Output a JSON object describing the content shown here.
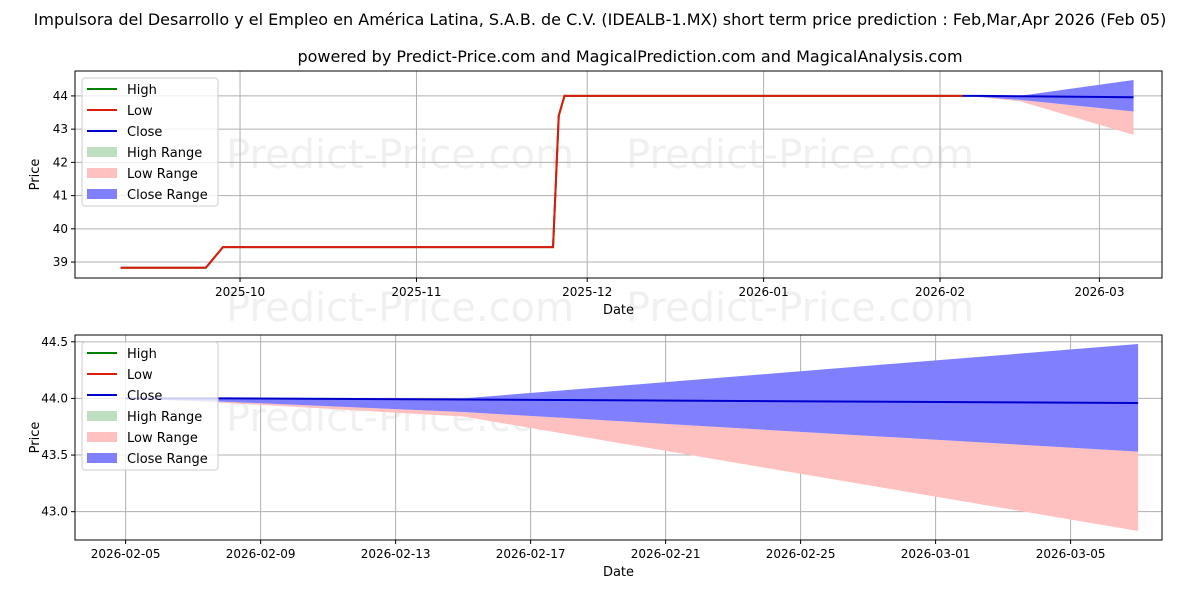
{
  "title": "Impulsora del Desarrollo y el Empleo en América Latina, S.A.B. de C.V. (IDEALB-1.MX) short term price prediction : Feb,Mar,Apr 2026 (Feb 05)",
  "subtitle": "powered by Predict-Price.com and MagicalPrediction.com and MagicalAnalysis.com",
  "watermark": "Predict-Price.com",
  "colors": {
    "high": "#008000",
    "low": "#dd1a10",
    "close": "#0000cc",
    "high_range": "#bfe0bf",
    "low_range": "#ffc0c0",
    "close_range": "#8080ff"
  },
  "legend": [
    "High",
    "Low",
    "Close",
    "High Range",
    "Low Range",
    "Close Range"
  ],
  "chart_data": [
    {
      "type": "line",
      "xlabel": "Date",
      "ylabel": "Price",
      "xlim": [
        "2025-09-02",
        "2026-03-12"
      ],
      "ylim": [
        38.52,
        44.75
      ],
      "grid": true,
      "legend_position": "top-left",
      "xticks": [
        {
          "date": "2025-10-01",
          "label": "2025-10"
        },
        {
          "date": "2025-11-01",
          "label": "2025-11"
        },
        {
          "date": "2025-12-01",
          "label": "2025-12"
        },
        {
          "date": "2026-01-01",
          "label": "2026-01"
        },
        {
          "date": "2026-02-01",
          "label": "2026-02"
        },
        {
          "date": "2026-03-01",
          "label": "2026-03"
        }
      ],
      "yticks": [
        39,
        40,
        41,
        42,
        43,
        44
      ],
      "history": {
        "dates": [
          "2025-09-10",
          "2025-09-25",
          "2025-09-28",
          "2025-11-25",
          "2025-11-26",
          "2025-11-27",
          "2026-02-05"
        ],
        "high": [
          38.83,
          38.83,
          39.45,
          39.45,
          43.4,
          44.0,
          44.0
        ],
        "low": [
          38.83,
          38.83,
          39.45,
          39.45,
          43.4,
          44.0,
          44.0
        ]
      }
    },
    {
      "type": "line",
      "xlabel": "Date",
      "ylabel": "Price",
      "xlim": [
        "2026-02-03T12:00",
        "2026-03-07T17:00"
      ],
      "ylim": [
        42.75,
        44.56
      ],
      "grid": true,
      "legend_position": "top-left",
      "xticks": [
        {
          "date": "2026-02-05",
          "label": "2026-02-05"
        },
        {
          "date": "2026-02-09",
          "label": "2026-02-09"
        },
        {
          "date": "2026-02-13",
          "label": "2026-02-13"
        },
        {
          "date": "2026-02-17",
          "label": "2026-02-17"
        },
        {
          "date": "2026-02-21",
          "label": "2026-02-21"
        },
        {
          "date": "2026-02-25",
          "label": "2026-02-25"
        },
        {
          "date": "2026-03-01",
          "label": "2026-03-01"
        },
        {
          "date": "2026-03-05",
          "label": "2026-03-05"
        }
      ],
      "yticks": [
        {
          "v": 43.0,
          "label": "43.0"
        },
        {
          "v": 43.5,
          "label": "43.5"
        },
        {
          "v": 44.0,
          "label": "44.0"
        },
        {
          "v": 44.5,
          "label": "44.5"
        }
      ]
    }
  ],
  "forecast": {
    "dates": [
      "2026-02-05",
      "2026-02-08",
      "2026-02-15",
      "2026-03-07"
    ],
    "close": [
      44.0,
      44.0,
      43.99,
      43.96
    ],
    "close_upper": [
      44.0,
      44.0,
      44.0,
      44.48
    ],
    "close_lower": [
      44.0,
      43.97,
      43.88,
      43.53
    ],
    "low_lower": [
      44.0,
      43.96,
      43.84,
      42.83
    ]
  }
}
